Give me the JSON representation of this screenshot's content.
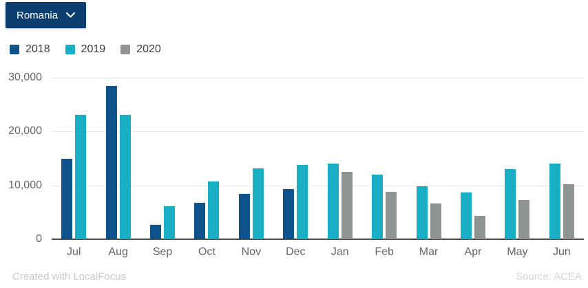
{
  "dropdown": {
    "label": "Romania",
    "background": "#0c3f70",
    "icon": "chevron-down"
  },
  "footer": {
    "credit": "Created with LocalFocus",
    "source": "Source: ACEA"
  },
  "chart_data": {
    "type": "bar",
    "title": "",
    "xlabel": "",
    "ylabel": "",
    "categories": [
      "Jul",
      "Aug",
      "Sep",
      "Oct",
      "Nov",
      "Dec",
      "Jan",
      "Feb",
      "Mar",
      "Apr",
      "May",
      "Jun"
    ],
    "series": [
      {
        "name": "2018",
        "color": "#0e538c",
        "values": [
          15000,
          28500,
          2700,
          6800,
          8400,
          9300,
          null,
          null,
          null,
          null,
          null,
          null
        ]
      },
      {
        "name": "2019",
        "color": "#18afc5",
        "values": [
          23100,
          23100,
          6100,
          10700,
          13200,
          13800,
          14000,
          12000,
          9800,
          8700,
          13000,
          14100
        ]
      },
      {
        "name": "2020",
        "color": "#909394",
        "values": [
          null,
          null,
          null,
          null,
          null,
          null,
          12500,
          8800,
          6600,
          4400,
          7300,
          10200
        ]
      }
    ],
    "ylim": [
      0,
      30000
    ],
    "yticks": [
      {
        "value": 0,
        "label": "0"
      },
      {
        "value": 10000,
        "label": "10,000"
      },
      {
        "value": 20000,
        "label": "20,000"
      },
      {
        "value": 30000,
        "label": "30,000"
      }
    ],
    "grid": true,
    "legend_position": "top-left"
  }
}
